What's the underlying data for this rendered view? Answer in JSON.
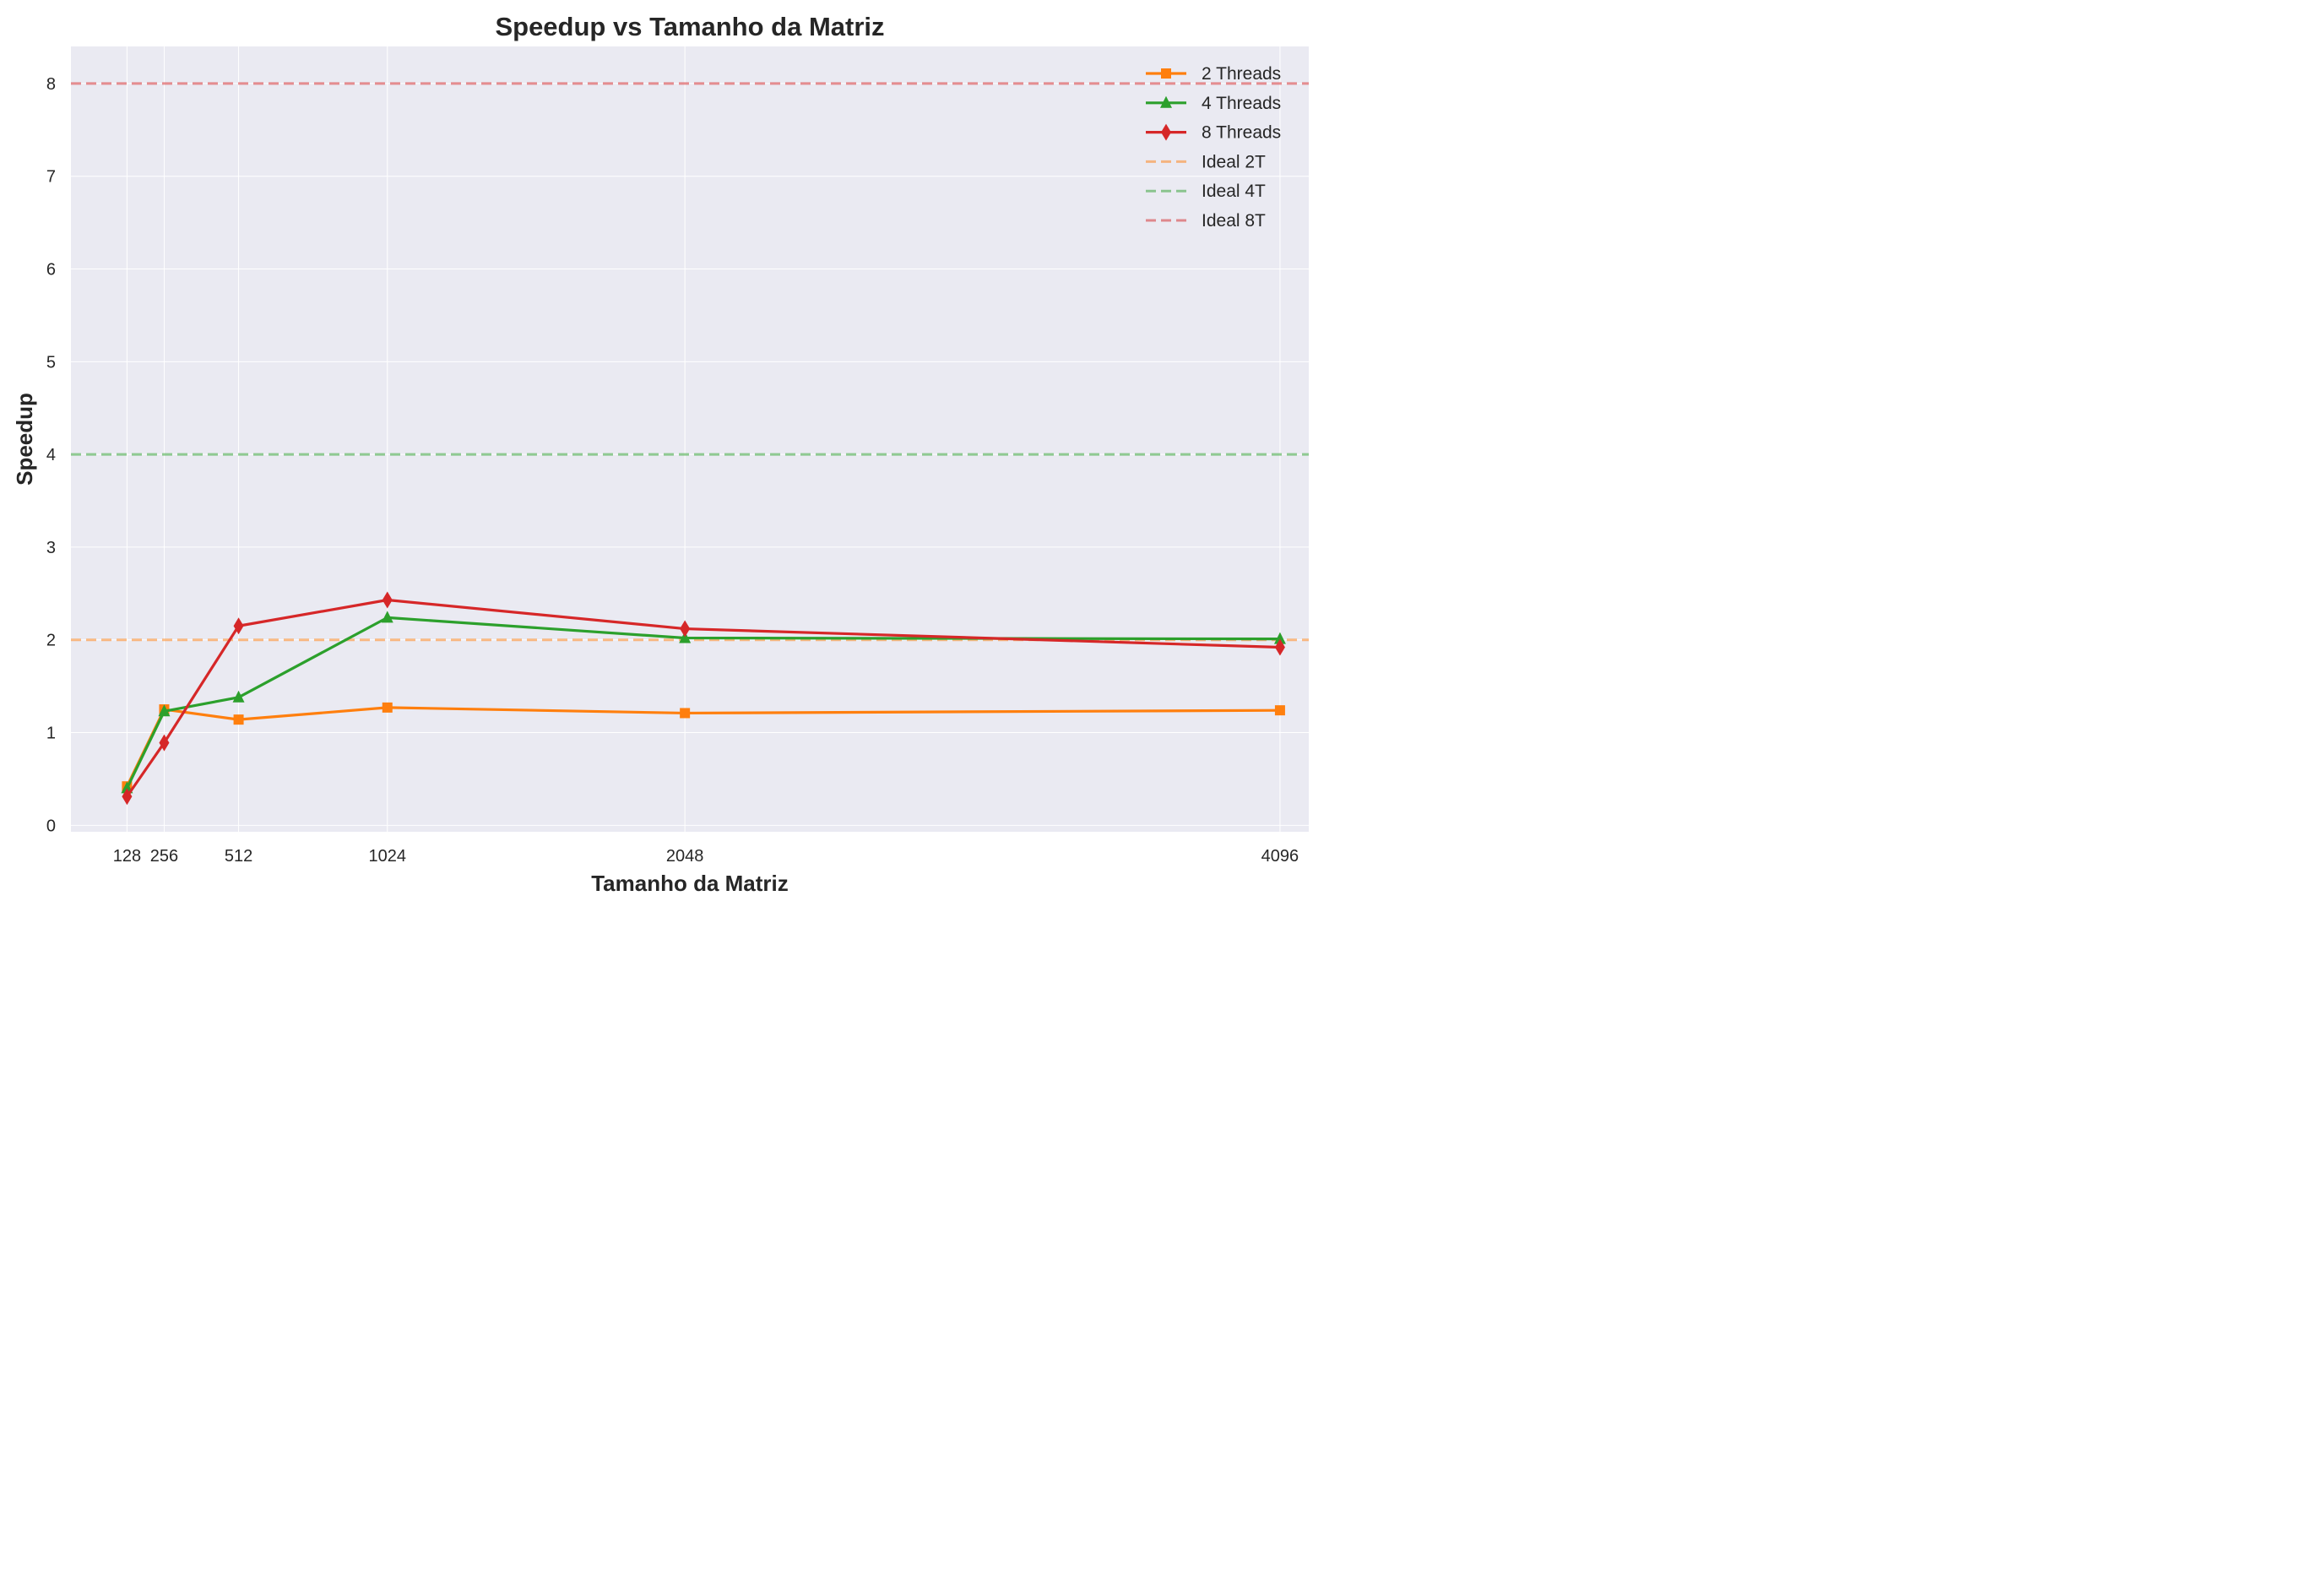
{
  "chart_data": {
    "type": "line",
    "title": "Speedup vs Tamanho da Matriz",
    "xlabel": "Tamanho da Matriz",
    "ylabel": "Speedup",
    "x": [
      128,
      256,
      512,
      1024,
      2048,
      4096
    ],
    "x_tick_labels": [
      "128",
      "256",
      "512",
      "1024",
      "2048",
      "4096"
    ],
    "y_ticks": [
      0,
      1,
      2,
      3,
      4,
      5,
      6,
      7,
      8
    ],
    "y_tick_labels": [
      "0",
      "1",
      "2",
      "3",
      "4",
      "5",
      "6",
      "7",
      "8"
    ],
    "xlim": [
      -65,
      4195
    ],
    "ylim": [
      -0.07,
      8.4
    ],
    "grid": true,
    "legend_position": "top-right",
    "series": [
      {
        "name": "2 Threads",
        "color": "#ff7f0e",
        "marker": "square",
        "values": [
          0.42,
          1.25,
          1.14,
          1.27,
          1.21,
          1.24
        ]
      },
      {
        "name": "4 Threads",
        "color": "#2ca02c",
        "marker": "triangle",
        "values": [
          0.4,
          1.23,
          1.38,
          2.24,
          2.02,
          2.01
        ]
      },
      {
        "name": "8 Threads",
        "color": "#d62728",
        "marker": "diamond",
        "values": [
          0.31,
          0.89,
          2.15,
          2.43,
          2.12,
          1.92
        ]
      }
    ],
    "reference_lines": [
      {
        "name": "Ideal 2T",
        "color": "#ff7f0e",
        "value": 2,
        "style": "dashed"
      },
      {
        "name": "Ideal 4T",
        "color": "#2ca02c",
        "value": 4,
        "style": "dashed"
      },
      {
        "name": "Ideal 8T",
        "color": "#d62728",
        "value": 8,
        "style": "dashed"
      }
    ]
  }
}
